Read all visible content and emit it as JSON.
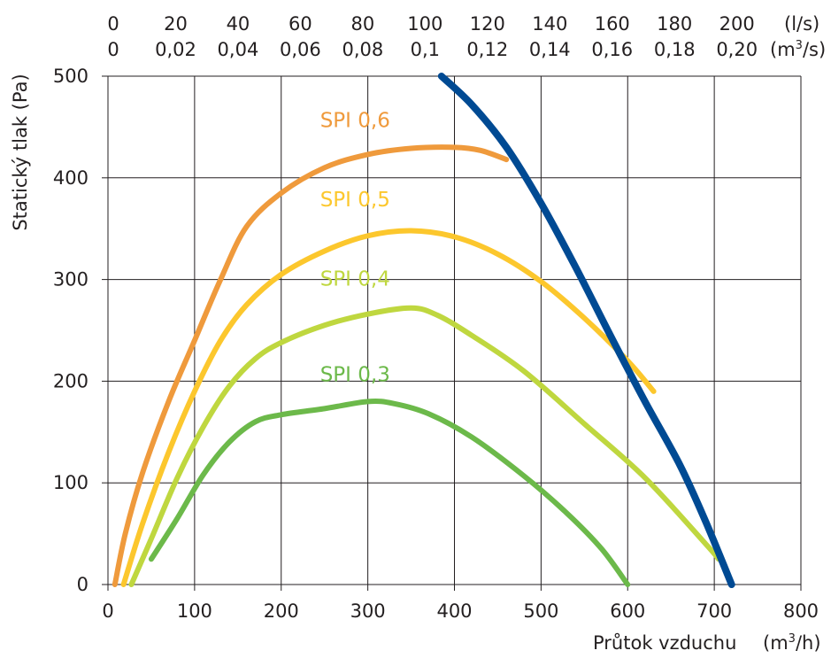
{
  "chart_data": {
    "type": "line",
    "xlabel": "Průtok vzduchu",
    "xunit_main": "(m",
    "xunit_sup": "3",
    "xunit_tail": "/h)",
    "ylabel": "Statický tlak (Pa)",
    "xlim": [
      0,
      800
    ],
    "ylim": [
      0,
      500
    ],
    "grid": true,
    "x_ticks": [
      "0",
      "100",
      "200",
      "300",
      "400",
      "500",
      "600",
      "700",
      "800"
    ],
    "y_ticks": [
      "0",
      "100",
      "200",
      "300",
      "400",
      "500"
    ],
    "secondary_x_axes": [
      {
        "unit": "(l/s)",
        "ticks": [
          {
            "at": 0,
            "label": "0"
          },
          {
            "at": 72,
            "label": "20"
          },
          {
            "at": 144,
            "label": "40"
          },
          {
            "at": 216,
            "label": "60"
          },
          {
            "at": 288,
            "label": "80"
          },
          {
            "at": 360,
            "label": "100"
          },
          {
            "at": 432,
            "label": "120"
          },
          {
            "at": 504,
            "label": "140"
          },
          {
            "at": 576,
            "label": "160"
          },
          {
            "at": 648,
            "label": "180"
          },
          {
            "at": 720,
            "label": "200"
          }
        ]
      },
      {
        "unit_main": "(m",
        "unit_sup": "3",
        "unit_tail": "/s)",
        "ticks": [
          {
            "at": 0,
            "label": "0"
          },
          {
            "at": 72,
            "label": "0,02"
          },
          {
            "at": 144,
            "label": "0,04"
          },
          {
            "at": 216,
            "label": "0,06"
          },
          {
            "at": 288,
            "label": "0,08"
          },
          {
            "at": 360,
            "label": "0,1"
          },
          {
            "at": 432,
            "label": "0,12"
          },
          {
            "at": 504,
            "label": "0,14"
          },
          {
            "at": 576,
            "label": "0,16"
          },
          {
            "at": 648,
            "label": "0,18"
          },
          {
            "at": 720,
            "label": "0,20"
          }
        ]
      }
    ],
    "series": [
      {
        "name": "SPI 0,6",
        "color": "#ef9a3c",
        "label_at": [
          250,
          450
        ],
        "points": [
          [
            8,
            0
          ],
          [
            20,
            50
          ],
          [
            40,
            110
          ],
          [
            70,
            180
          ],
          [
            100,
            240
          ],
          [
            130,
            300
          ],
          [
            160,
            352
          ],
          [
            200,
            385
          ],
          [
            250,
            410
          ],
          [
            300,
            423
          ],
          [
            350,
            429
          ],
          [
            400,
            430
          ],
          [
            430,
            427
          ],
          [
            460,
            418
          ]
        ]
      },
      {
        "name": "SPI 0,5",
        "color": "#fcc72d",
        "label_at": [
          250,
          372
        ],
        "points": [
          [
            18,
            0
          ],
          [
            40,
            60
          ],
          [
            70,
            130
          ],
          [
            100,
            190
          ],
          [
            130,
            240
          ],
          [
            160,
            275
          ],
          [
            200,
            305
          ],
          [
            250,
            328
          ],
          [
            300,
            343
          ],
          [
            350,
            348
          ],
          [
            400,
            342
          ],
          [
            450,
            325
          ],
          [
            500,
            298
          ],
          [
            550,
            262
          ],
          [
            600,
            220
          ],
          [
            630,
            190
          ]
        ]
      },
      {
        "name": "SPI 0,4",
        "color": "#bfd73f",
        "label_at": [
          250,
          294
        ],
        "points": [
          [
            27,
            0
          ],
          [
            50,
            45
          ],
          [
            80,
            105
          ],
          [
            110,
            155
          ],
          [
            140,
            195
          ],
          [
            170,
            222
          ],
          [
            200,
            238
          ],
          [
            250,
            255
          ],
          [
            300,
            266
          ],
          [
            350,
            272
          ],
          [
            380,
            265
          ],
          [
            420,
            245
          ],
          [
            480,
            210
          ],
          [
            550,
            158
          ],
          [
            620,
            105
          ],
          [
            690,
            40
          ],
          [
            705,
            25
          ]
        ]
      },
      {
        "name": "SPI 0,3",
        "color": "#6cb94a",
        "label_at": [
          250,
          200
        ],
        "points": [
          [
            50,
            25
          ],
          [
            80,
            65
          ],
          [
            110,
            108
          ],
          [
            140,
            140
          ],
          [
            170,
            160
          ],
          [
            200,
            167
          ],
          [
            250,
            173
          ],
          [
            300,
            180
          ],
          [
            330,
            178
          ],
          [
            370,
            168
          ],
          [
            420,
            145
          ],
          [
            480,
            107
          ],
          [
            530,
            70
          ],
          [
            570,
            35
          ],
          [
            600,
            0
          ]
        ]
      },
      {
        "name": "",
        "color": "#004a93",
        "points": [
          [
            385,
            500
          ],
          [
            420,
            472
          ],
          [
            460,
            430
          ],
          [
            500,
            375
          ],
          [
            540,
            312
          ],
          [
            580,
            245
          ],
          [
            620,
            180
          ],
          [
            660,
            118
          ],
          [
            690,
            62
          ],
          [
            720,
            0
          ]
        ]
      }
    ]
  }
}
